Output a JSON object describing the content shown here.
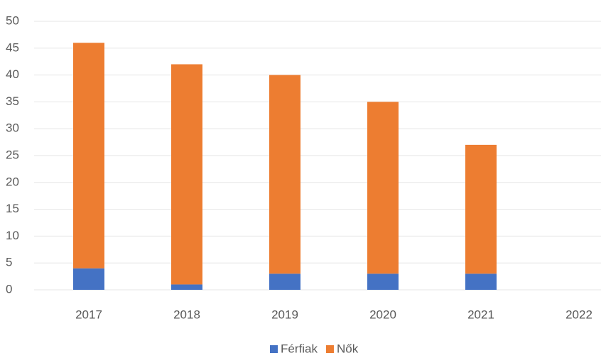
{
  "chart_data": {
    "type": "stacked_bar",
    "categories": [
      "2017",
      "2018",
      "2019",
      "2020",
      "2021",
      "2022"
    ],
    "series": [
      {
        "name": "Férfiak",
        "color": "#4472c4",
        "values": [
          4,
          1,
          3,
          3,
          3,
          null
        ]
      },
      {
        "name": "Nők",
        "color": "#ed7d31",
        "values": [
          42,
          41,
          37,
          32,
          24,
          null
        ]
      }
    ],
    "ylim": [
      0,
      50
    ],
    "yticks": [
      0,
      5,
      10,
      15,
      20,
      25,
      30,
      35,
      40,
      45,
      50
    ],
    "grid": true,
    "legend": "bottom"
  }
}
